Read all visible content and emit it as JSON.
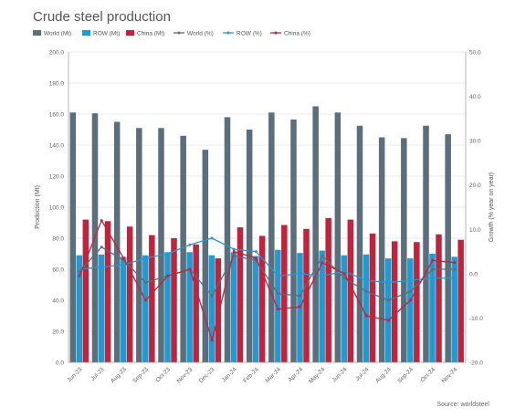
{
  "chart_data": {
    "type": "bar",
    "title": "Crude steel production",
    "source": "Source: worldsteel",
    "categories": [
      "Jun-23",
      "Jul-23",
      "Aug-23",
      "Sep-23",
      "Oct-23",
      "Nov-23",
      "Dec-23",
      "Jan-24",
      "Feb-24",
      "Mar-24",
      "Apr-24",
      "May-24",
      "Jun-24",
      "Jul-24",
      "Aug-24",
      "Sep-24",
      "Oct-24",
      "Nov-24"
    ],
    "ylabel": "Production (Mt)",
    "y2label": "Growth (% year on year)",
    "ylim": [
      0,
      200
    ],
    "y2lim": [
      -20,
      50
    ],
    "yticks": [
      "0.0",
      "20.0",
      "40.0",
      "60.0",
      "80.0",
      "100.0",
      "120.0",
      "140.0",
      "160.0",
      "180.0",
      "200.0"
    ],
    "y2ticks": [
      "-20.0",
      "-10.0",
      "0.0",
      "10.0",
      "20.0",
      "30.0",
      "40.0",
      "50.0"
    ],
    "bar_series": [
      {
        "name": "World (Mt)",
        "color": "#5a6e7c",
        "values": [
          161,
          160.5,
          155,
          151,
          151,
          146,
          137,
          158,
          150,
          161,
          156.5,
          165,
          161,
          152.5,
          145,
          144.5,
          152.5,
          147
        ]
      },
      {
        "name": "ROW (Mt)",
        "color": "#1f9bd1",
        "values": [
          69,
          69.5,
          68,
          69,
          71,
          71,
          69,
          71,
          68.5,
          72.5,
          70.5,
          72,
          69,
          69.5,
          67,
          67,
          70,
          68
        ]
      },
      {
        "name": "China (Mt)",
        "color": "#c4213a",
        "values": [
          92,
          91,
          87.5,
          82,
          80,
          76,
          67,
          87,
          81.5,
          88.5,
          86,
          93,
          92,
          83,
          78,
          77.5,
          82.5,
          79
        ]
      }
    ],
    "line_series": [
      {
        "name": "World (%)",
        "color": "#5a6e7c",
        "values": [
          0.5,
          6,
          3,
          -2,
          -0.5,
          1,
          -5,
          4,
          3,
          -4.5,
          -5,
          4,
          -1,
          -4,
          -6,
          -4,
          1,
          1
        ]
      },
      {
        "name": "ROW (%)",
        "color": "#1f9bd1",
        "values": [
          1,
          1.5,
          2,
          3.5,
          4.5,
          6.5,
          8,
          5.5,
          5,
          -0.5,
          0,
          -0.5,
          0.5,
          -1.5,
          -2,
          -1.5,
          -1,
          -1
        ]
      },
      {
        "name": "China (%)",
        "color": "#c4213a",
        "values": [
          -0.5,
          12,
          3.5,
          -6,
          -0.5,
          1,
          -15,
          5,
          3.5,
          -8,
          -7.5,
          2.5,
          0,
          -9.5,
          -10.5,
          -6,
          3,
          2.5
        ]
      }
    ],
    "grid": true,
    "legend": "top-left"
  }
}
